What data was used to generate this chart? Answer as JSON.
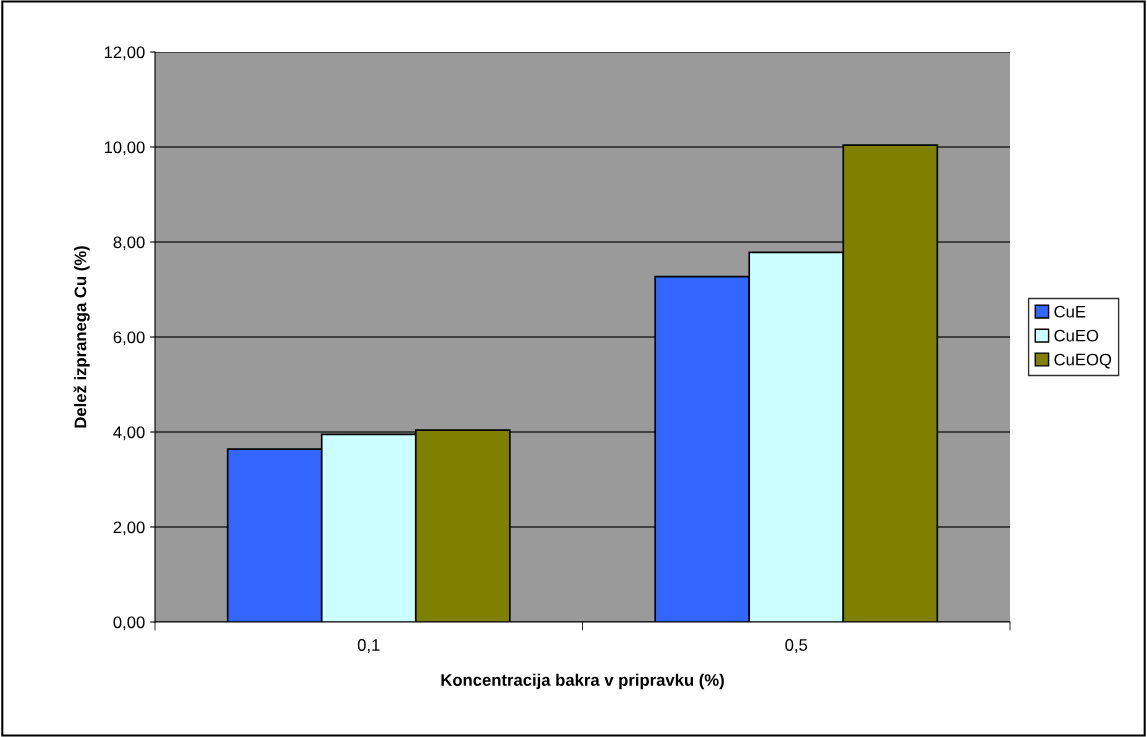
{
  "chart_data": {
    "type": "bar",
    "xlabel": "Koncentracija bakra v pripravku (%)",
    "ylabel": "Delež izpranega Cu (%)",
    "categories": [
      "0,1",
      "0,5"
    ],
    "series": [
      {
        "name": "CuE",
        "color": "#3366ff",
        "values": [
          3.64,
          7.27
        ]
      },
      {
        "name": "CuEO",
        "color": "#ccffff",
        "values": [
          3.95,
          7.78
        ]
      },
      {
        "name": "CuEOQ",
        "color": "#808000",
        "values": [
          4.04,
          10.04
        ]
      }
    ],
    "ylim": [
      0,
      12
    ],
    "yticks": [
      {
        "value": 0,
        "label": "0,00"
      },
      {
        "value": 2,
        "label": "2,00"
      },
      {
        "value": 4,
        "label": "4,00"
      },
      {
        "value": 6,
        "label": "6,00"
      },
      {
        "value": 8,
        "label": "8,00"
      },
      {
        "value": 10,
        "label": "10,00"
      },
      {
        "value": 12,
        "label": "12,00"
      }
    ],
    "grid": "y",
    "legend": "right"
  }
}
